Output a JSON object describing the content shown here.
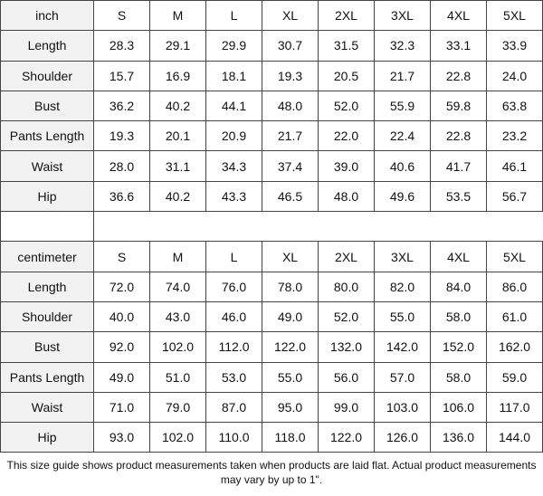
{
  "tables": [
    {
      "header": [
        "inch",
        "S",
        "M",
        "L",
        "XL",
        "2XL",
        "3XL",
        "4XL",
        "5XL"
      ],
      "rows": [
        [
          "Length",
          "28.3",
          "29.1",
          "29.9",
          "30.7",
          "31.5",
          "32.3",
          "33.1",
          "33.9"
        ],
        [
          "Shoulder",
          "15.7",
          "16.9",
          "18.1",
          "19.3",
          "20.5",
          "21.7",
          "22.8",
          "24.0"
        ],
        [
          "Bust",
          "36.2",
          "40.2",
          "44.1",
          "48.0",
          "52.0",
          "55.9",
          "59.8",
          "63.8"
        ],
        [
          "Pants Length",
          "19.3",
          "20.1",
          "20.9",
          "21.7",
          "22.0",
          "22.4",
          "22.8",
          "23.2"
        ],
        [
          "Waist",
          "28.0",
          "31.1",
          "34.3",
          "37.4",
          "39.0",
          "40.6",
          "41.7",
          "46.1"
        ],
        [
          "Hip",
          "36.6",
          "40.2",
          "43.3",
          "46.5",
          "48.0",
          "49.6",
          "53.5",
          "56.7"
        ]
      ]
    },
    {
      "header": [
        "centimeter",
        "S",
        "M",
        "L",
        "XL",
        "2XL",
        "3XL",
        "4XL",
        "5XL"
      ],
      "rows": [
        [
          "Length",
          "72.0",
          "74.0",
          "76.0",
          "78.0",
          "80.0",
          "82.0",
          "84.0",
          "86.0"
        ],
        [
          "Shoulder",
          "40.0",
          "43.0",
          "46.0",
          "49.0",
          "52.0",
          "55.0",
          "58.0",
          "61.0"
        ],
        [
          "Bust",
          "92.0",
          "102.0",
          "112.0",
          "122.0",
          "132.0",
          "142.0",
          "152.0",
          "162.0"
        ],
        [
          "Pants Length",
          "49.0",
          "51.0",
          "53.0",
          "55.0",
          "56.0",
          "57.0",
          "58.0",
          "59.0"
        ],
        [
          "Waist",
          "71.0",
          "79.0",
          "87.0",
          "95.0",
          "99.0",
          "103.0",
          "106.0",
          "117.0"
        ],
        [
          "Hip",
          "93.0",
          "102.0",
          "110.0",
          "118.0",
          "122.0",
          "126.0",
          "136.0",
          "144.0"
        ]
      ]
    }
  ],
  "footnote": "This size guide shows product measurements taken when products are laid flat. Actual product measurements may vary by up to 1\"."
}
